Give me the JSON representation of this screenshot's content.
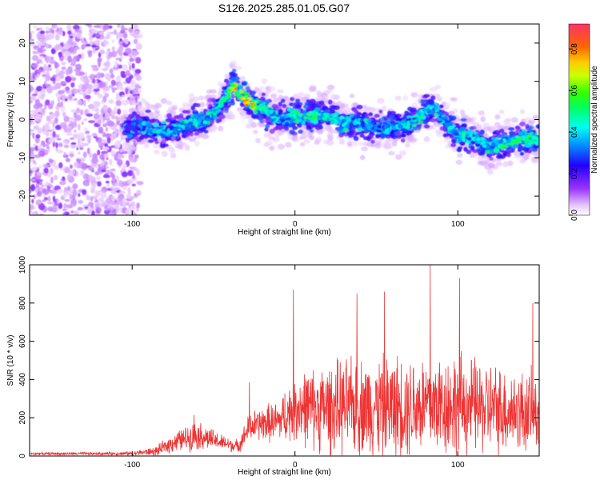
{
  "title": "S126.2025.285.01.05.G07",
  "chart_data": [
    {
      "type": "heatmap",
      "name": "spectrogram",
      "xlabel": "Height of straight line (km)",
      "ylabel": "Frequency (Hz)",
      "xlim": [
        -163,
        150
      ],
      "ylim": [
        -25,
        25
      ],
      "xticks": [
        -100,
        0,
        100
      ],
      "yticks": [
        -20,
        -10,
        0,
        10,
        20
      ],
      "colorbar": {
        "label": "Normalized spectral amplitude",
        "range": [
          0.0,
          0.92
        ],
        "ticks": [
          0.0,
          0.2,
          0.4,
          0.6,
          0.8
        ],
        "tick_labels": [
          "0.0",
          "0.2",
          "0.4",
          "0.6",
          "0.8"
        ]
      },
      "ridge": {
        "x": [
          -105,
          -95,
          -85,
          -75,
          -65,
          -55,
          -45,
          -38,
          -30,
          -20,
          -10,
          0,
          10,
          20,
          30,
          40,
          50,
          60,
          70,
          80,
          85,
          90,
          100,
          110,
          120,
          130,
          140,
          150
        ],
        "freq": [
          -2,
          -2,
          -3,
          -3,
          -1,
          0,
          4,
          9,
          5,
          3,
          0,
          1,
          1,
          1,
          -1,
          -1,
          -2,
          -2,
          -1,
          2,
          3,
          1,
          -4,
          -5,
          -7,
          -6,
          -5,
          -5
        ],
        "amplitude": [
          0.25,
          0.35,
          0.4,
          0.45,
          0.5,
          0.45,
          0.55,
          0.8,
          0.92,
          0.7,
          0.45,
          0.55,
          0.6,
          0.55,
          0.5,
          0.45,
          0.4,
          0.45,
          0.5,
          0.55,
          0.5,
          0.45,
          0.5,
          0.45,
          0.5,
          0.55,
          0.6,
          0.55
        ]
      },
      "noise_region_x": [
        -163,
        -95
      ]
    },
    {
      "type": "line",
      "name": "snr",
      "xlabel": "Height of straight line (km)",
      "ylabel": "SNR (10 * v/v)",
      "xlim": [
        -163,
        150
      ],
      "ylim": [
        0,
        1000
      ],
      "xticks": [
        -100,
        0,
        100
      ],
      "yticks": [
        0,
        200,
        400,
        600,
        800,
        1000
      ],
      "color": "#ee3333",
      "envelope": {
        "x": [
          -163,
          -120,
          -100,
          -85,
          -75,
          -60,
          -45,
          -35,
          -28,
          -20,
          -10,
          0,
          10,
          20,
          40,
          60,
          80,
          100,
          120,
          140,
          150
        ],
        "base": [
          12,
          12,
          14,
          25,
          70,
          110,
          70,
          50,
          150,
          170,
          180,
          260,
          250,
          250,
          260,
          260,
          270,
          270,
          250,
          230,
          230
        ],
        "spread": [
          8,
          10,
          12,
          30,
          60,
          90,
          50,
          40,
          90,
          110,
          130,
          220,
          250,
          280,
          300,
          320,
          320,
          320,
          280,
          260,
          240
        ]
      },
      "peaks": [
        {
          "x": -62,
          "y": 215
        },
        {
          "x": -28,
          "y": 385
        },
        {
          "x": -1,
          "y": 870
        },
        {
          "x": 38,
          "y": 850
        },
        {
          "x": 55,
          "y": 860
        },
        {
          "x": 83,
          "y": 1000
        },
        {
          "x": 101,
          "y": 930
        },
        {
          "x": 146,
          "y": 800
        }
      ]
    }
  ]
}
